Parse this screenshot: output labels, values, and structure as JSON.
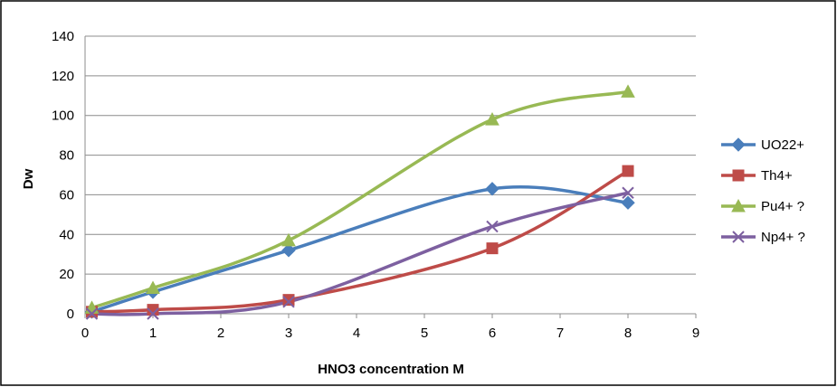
{
  "chart_data": {
    "type": "line",
    "title": "",
    "xlabel": "HNO3 concentration M",
    "ylabel": "Dw",
    "xlim": [
      0,
      9
    ],
    "ylim": [
      0,
      140
    ],
    "x_ticks": [
      "0",
      "1",
      "2",
      "3",
      "4",
      "5",
      "6",
      "7",
      "8",
      "9"
    ],
    "y_ticks": [
      "0",
      "20",
      "40",
      "60",
      "80",
      "100",
      "120",
      "140"
    ],
    "grid": "horizontal",
    "legend_position": "right",
    "series": [
      {
        "name": "UO22+",
        "color": "#4a7ebb",
        "marker": "diamond",
        "x": [
          0.1,
          1,
          3,
          6,
          8
        ],
        "y": [
          1,
          11,
          32,
          63,
          56
        ]
      },
      {
        "name": "Th4+",
        "color": "#be4b48",
        "marker": "square",
        "x": [
          0.1,
          1,
          3,
          6,
          8
        ],
        "y": [
          1,
          2,
          7,
          33,
          72
        ]
      },
      {
        "name": "Pu4+ ?",
        "color": "#98b954",
        "marker": "triangle",
        "x": [
          0.1,
          1,
          3,
          6,
          8
        ],
        "y": [
          3,
          13,
          37,
          98,
          112
        ]
      },
      {
        "name": "Np4+ ?",
        "color": "#7d60a0",
        "marker": "x",
        "x": [
          0.1,
          1,
          3,
          6,
          8
        ],
        "y": [
          0,
          0,
          6,
          44,
          61
        ]
      }
    ]
  }
}
